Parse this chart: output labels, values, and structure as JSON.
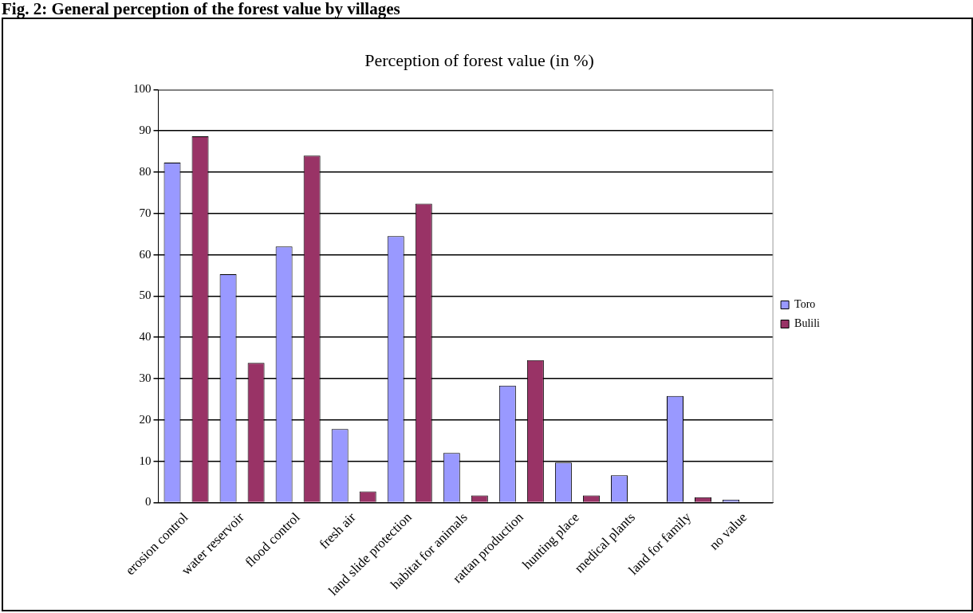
{
  "chart_data": {
    "type": "bar",
    "title": "Perception of forest value (in %)",
    "annotations": [
      "Fig. 2: General perception of the forest value by villages"
    ],
    "categories": [
      "erosion control",
      "water reservoir",
      "flood control",
      "fresh air",
      "land slide protection",
      "habitat for animals",
      "rattan production",
      "hunting place",
      "medical plants",
      "land for family",
      "no value"
    ],
    "series": [
      {
        "name": "Toro",
        "color": "#9999ff",
        "values": [
          82.3,
          55.3,
          62,
          17.8,
          64.5,
          12,
          28.3,
          9.7,
          6.6,
          25.8,
          0.7
        ]
      },
      {
        "name": "Bulili",
        "color": "#993366",
        "values": [
          88.7,
          33.8,
          84,
          2.7,
          72.4,
          1.7,
          34.5,
          1.7,
          null,
          1.3,
          null
        ]
      }
    ],
    "ylim": [
      0,
      100
    ],
    "yticks": [
      0,
      10,
      20,
      30,
      40,
      50,
      60,
      70,
      80,
      90,
      100
    ],
    "grid": "y",
    "legend": "right"
  }
}
